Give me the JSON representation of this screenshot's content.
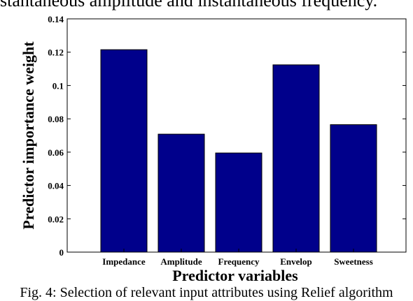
{
  "top_caption": "stantaneous amplitude and instantaneous frequency.",
  "bottom_caption": "Fig. 4: Selection of relevant input attributes using Relief algorithm",
  "chart_data": {
    "type": "bar",
    "categories": [
      "Impedance",
      "Amplitude",
      "Frequency",
      "Envelop",
      "Sweetness"
    ],
    "values": [
      0.1215,
      0.0708,
      0.0595,
      0.1124,
      0.0765
    ],
    "xlabel": "Predictor variables",
    "ylabel": "Predictor importance weight",
    "ylim": [
      0,
      0.14
    ],
    "yticks": [
      "0",
      "0.02",
      "0.04",
      "0.06",
      "0.08",
      "0.1",
      "0.12",
      "0.14"
    ],
    "bar_color": "#00008b",
    "grid": false,
    "legend": false
  }
}
